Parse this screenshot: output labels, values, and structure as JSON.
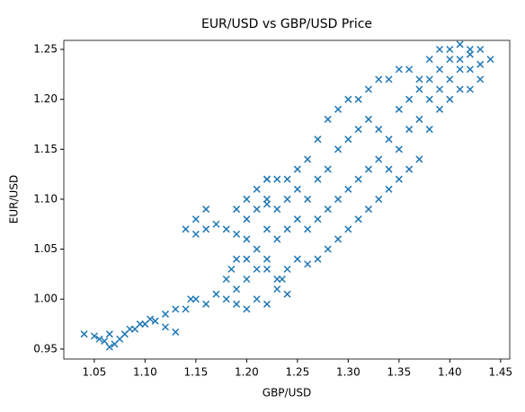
{
  "chart_data": {
    "type": "scatter",
    "title": "EUR/USD vs GBP/USD Price",
    "xlabel": "GBP/USD",
    "ylabel": "EUR/USD",
    "color": "#1f77b4",
    "marker": "x",
    "xlim": [
      1.02,
      1.459
    ],
    "ylim": [
      0.94,
      1.259
    ],
    "xticks": [
      1.05,
      {
        "value": 1.1,
        "label": "1.10"
      },
      1.15,
      {
        "value": 1.2,
        "label": "1.20"
      },
      1.25,
      {
        "value": 1.3,
        "label": "1.30"
      },
      1.35,
      {
        "value": 1.4,
        "label": "1.40"
      },
      1.45
    ],
    "yticks": [
      0.95,
      {
        "value": 1.0,
        "label": "1.00"
      },
      1.05,
      {
        "value": 1.1,
        "label": "1.10"
      },
      1.15,
      {
        "value": 1.2,
        "label": "1.20"
      },
      1.25
    ],
    "x": [
      1.04,
      1.05,
      1.055,
      1.06,
      1.065,
      1.07,
      1.065,
      1.075,
      1.08,
      1.085,
      1.09,
      1.095,
      1.1,
      1.105,
      1.11,
      1.12,
      1.13,
      1.12,
      1.13,
      1.14,
      1.145,
      1.15,
      1.16,
      1.17,
      1.18,
      1.19,
      1.2,
      1.19,
      1.18,
      1.185,
      1.19,
      1.2,
      1.21,
      1.2,
      1.22,
      1.23,
      1.24,
      1.235,
      1.21,
      1.22,
      1.2,
      1.21,
      1.14,
      1.15,
      1.16,
      1.17,
      1.18,
      1.19,
      1.15,
      1.16,
      1.2,
      1.21,
      1.22,
      1.2,
      1.19,
      1.21,
      1.22,
      1.22,
      1.22,
      1.22,
      1.22,
      1.23,
      1.23,
      1.23,
      1.23,
      1.24,
      1.24,
      1.24,
      1.24,
      1.25,
      1.25,
      1.25,
      1.25,
      1.26,
      1.26,
      1.26,
      1.26,
      1.27,
      1.27,
      1.27,
      1.27,
      1.28,
      1.28,
      1.28,
      1.28,
      1.29,
      1.29,
      1.29,
      1.29,
      1.3,
      1.3,
      1.3,
      1.3,
      1.31,
      1.31,
      1.31,
      1.31,
      1.32,
      1.32,
      1.32,
      1.32,
      1.33,
      1.33,
      1.33,
      1.33,
      1.34,
      1.34,
      1.34,
      1.34,
      1.35,
      1.35,
      1.35,
      1.35,
      1.36,
      1.36,
      1.36,
      1.36,
      1.37,
      1.37,
      1.37,
      1.37,
      1.38,
      1.38,
      1.38,
      1.38,
      1.39,
      1.39,
      1.39,
      1.39,
      1.4,
      1.4,
      1.4,
      1.4,
      1.41,
      1.41,
      1.41,
      1.41,
      1.42,
      1.42,
      1.42,
      1.42,
      1.43,
      1.43,
      1.43,
      1.44
    ],
    "y": [
      0.965,
      0.963,
      0.96,
      0.958,
      0.952,
      0.955,
      0.965,
      0.96,
      0.965,
      0.97,
      0.97,
      0.975,
      0.975,
      0.98,
      0.978,
      0.972,
      0.967,
      0.985,
      0.99,
      0.99,
      1.0,
      1.0,
      0.995,
      1.005,
      1.0,
      0.995,
      0.99,
      1.01,
      1.02,
      1.03,
      1.04,
      1.04,
      1.05,
      1.06,
      1.03,
      1.01,
      1.005,
      1.02,
      1.0,
      0.995,
      1.02,
      1.03,
      1.07,
      1.08,
      1.09,
      1.075,
      1.07,
      1.065,
      1.065,
      1.07,
      1.08,
      1.09,
      1.095,
      1.1,
      1.09,
      1.11,
      1.12,
      1.04,
      1.07,
      1.1,
      1.12,
      1.02,
      1.06,
      1.09,
      1.12,
      1.03,
      1.07,
      1.1,
      1.12,
      1.04,
      1.08,
      1.11,
      1.13,
      1.035,
      1.07,
      1.1,
      1.14,
      1.04,
      1.08,
      1.12,
      1.16,
      1.05,
      1.09,
      1.13,
      1.18,
      1.06,
      1.1,
      1.15,
      1.19,
      1.07,
      1.11,
      1.16,
      1.2,
      1.08,
      1.12,
      1.17,
      1.2,
      1.09,
      1.13,
      1.18,
      1.21,
      1.1,
      1.14,
      1.17,
      1.22,
      1.11,
      1.13,
      1.16,
      1.22,
      1.12,
      1.15,
      1.19,
      1.23,
      1.13,
      1.17,
      1.2,
      1.23,
      1.14,
      1.18,
      1.21,
      1.22,
      1.17,
      1.2,
      1.22,
      1.24,
      1.19,
      1.21,
      1.23,
      1.25,
      1.2,
      1.22,
      1.24,
      1.25,
      1.21,
      1.23,
      1.24,
      1.255,
      1.21,
      1.23,
      1.245,
      1.25,
      1.22,
      1.235,
      1.25,
      1.24
    ]
  }
}
